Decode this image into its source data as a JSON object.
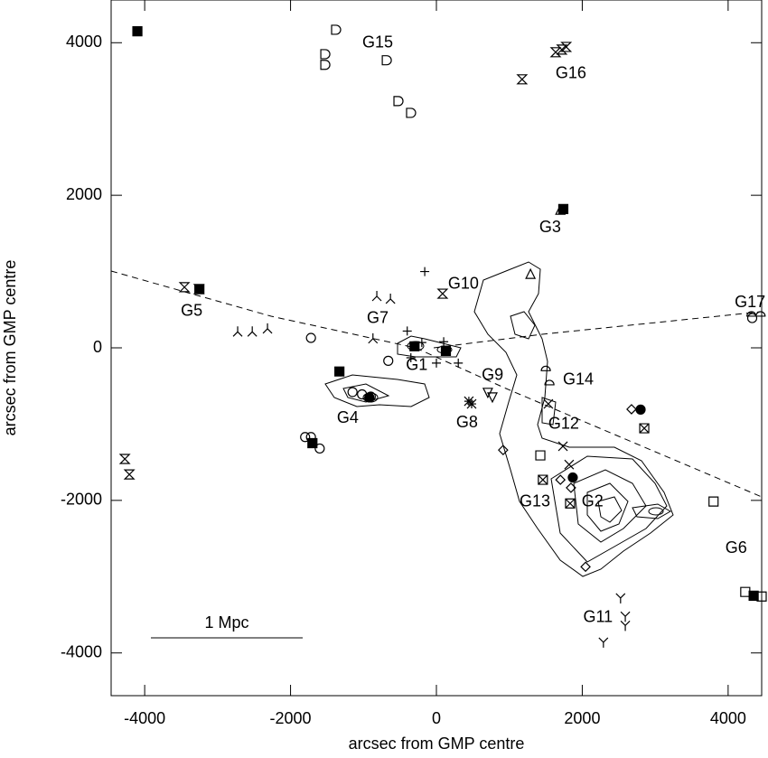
{
  "chart_data": {
    "type": "scatter",
    "xlabel": "arcsec from GMP centre",
    "ylabel": "arcsec from GMP centre",
    "xlim": [
      -4460,
      4460
    ],
    "ylim": [
      -4560,
      4560
    ],
    "xticks": [
      -4000,
      -2000,
      0,
      2000,
      4000
    ],
    "yticks": [
      -4000,
      -2000,
      0,
      2000,
      4000
    ],
    "scale_label": "1 Mpc",
    "series": [
      {
        "marker": "filled-square",
        "color": "#000000",
        "x": [
          -4100,
          -3250,
          -1330,
          -1700,
          -300,
          130,
          1740,
          4350
        ],
        "y": [
          4150,
          770,
          -310,
          -1250,
          20,
          -40,
          1820,
          -3250
        ]
      },
      {
        "marker": "filled-circle",
        "color": "#000000",
        "x": [
          -920,
          2800,
          1870
        ],
        "y": [
          -650,
          -810,
          -1700
        ]
      },
      {
        "marker": "circle",
        "color": "#000000",
        "x": [
          -1720,
          -660,
          -1150,
          -1020,
          -900,
          -1800,
          -1720,
          -1600,
          4330
        ],
        "y": [
          130,
          -170,
          -580,
          -610,
          -640,
          -1170,
          -1170,
          -1320,
          390
        ]
      },
      {
        "marker": "plus",
        "color": "#000000",
        "x": [
          -160,
          -400,
          -350,
          0,
          300,
          100,
          -200
        ],
        "y": [
          1000,
          220,
          -130,
          -200,
          -200,
          80,
          70
        ]
      },
      {
        "marker": "square",
        "color": "#000000",
        "x": [
          1425,
          3800,
          4235,
          4460
        ],
        "y": [
          -1410,
          -2015,
          -3200,
          -3260
        ]
      },
      {
        "marker": "square-x",
        "color": "#000000",
        "x": [
          1460,
          1833,
          2850
        ],
        "y": [
          -1730,
          -2040,
          -1055
        ]
      },
      {
        "marker": "diamond",
        "color": "#000000",
        "x": [
          915,
          2675,
          1700,
          1845,
          2045
        ],
        "y": [
          -1340,
          -805,
          -1730,
          -1835,
          -2870
        ]
      },
      {
        "marker": "x",
        "color": "#000000",
        "x": [
          1735,
          1535,
          1820
        ],
        "y": [
          -1290,
          -735,
          -1530
        ]
      },
      {
        "marker": "asterisk",
        "color": "#000000",
        "x": [
          445,
          483
        ],
        "y": [
          -700,
          -735
        ]
      },
      {
        "marker": "triangle-down",
        "color": "#000000",
        "x": [
          705,
          768
        ],
        "y": [
          -590,
          -650
        ]
      },
      {
        "marker": "triangle-up",
        "color": "#000000",
        "x": [
          1700,
          1290
        ],
        "y": [
          1810,
          970
        ]
      },
      {
        "marker": "bowtie",
        "color": "#000000",
        "x": [
          1175,
          1635,
          1720,
          1780,
          85,
          -3455,
          -3257,
          -4272,
          -4210
        ],
        "y": [
          3520,
          3875,
          3910,
          3945,
          710,
          795,
          770,
          -1457,
          -1660
        ]
      },
      {
        "marker": "d-shape",
        "color": "#000000",
        "x": [
          -1375,
          -1523,
          -1523,
          -680,
          -520,
          -347
        ],
        "y": [
          4170,
          3850,
          3710,
          3770,
          3235,
          3080
        ]
      },
      {
        "marker": "y-shape",
        "color": "#000000",
        "x": [
          2525,
          2590,
          2590,
          2290
        ],
        "y": [
          -3280,
          -3520,
          -3640,
          -3860
        ]
      },
      {
        "marker": "lambda",
        "color": "#000000",
        "x": [
          -2725,
          -2525,
          -2316,
          -817,
          -630,
          -870
        ],
        "y": [
          210,
          210,
          250,
          675,
          640,
          120
        ]
      },
      {
        "marker": "half-circle",
        "color": "#000000",
        "x": [
          1500,
          1550,
          4320,
          4445
        ],
        "y": [
          -300,
          -485,
          415,
          415
        ]
      }
    ],
    "annotations": [
      {
        "text": "G15",
        "x": -805,
        "y": 3995
      },
      {
        "text": "G16",
        "x": 1845,
        "y": 3590
      },
      {
        "text": "G3",
        "x": 1560,
        "y": 1575
      },
      {
        "text": "G10",
        "x": 370,
        "y": 830
      },
      {
        "text": "G5",
        "x": -3355,
        "y": 475
      },
      {
        "text": "G7",
        "x": -805,
        "y": 380
      },
      {
        "text": "G17",
        "x": 4300,
        "y": 590
      },
      {
        "text": "G1",
        "x": -270,
        "y": -235
      },
      {
        "text": "G9",
        "x": 770,
        "y": -365
      },
      {
        "text": "G14",
        "x": 1945,
        "y": -425
      },
      {
        "text": "G4",
        "x": -1215,
        "y": -925
      },
      {
        "text": "G8",
        "x": 420,
        "y": -985
      },
      {
        "text": "G12",
        "x": 1745,
        "y": -1005
      },
      {
        "text": "G13",
        "x": 1350,
        "y": -2025
      },
      {
        "text": "G2",
        "x": 2140,
        "y": -2025
      },
      {
        "text": "G6",
        "x": 4110,
        "y": -2630
      },
      {
        "text": "G11",
        "x": 2215,
        "y": -3540
      }
    ]
  }
}
